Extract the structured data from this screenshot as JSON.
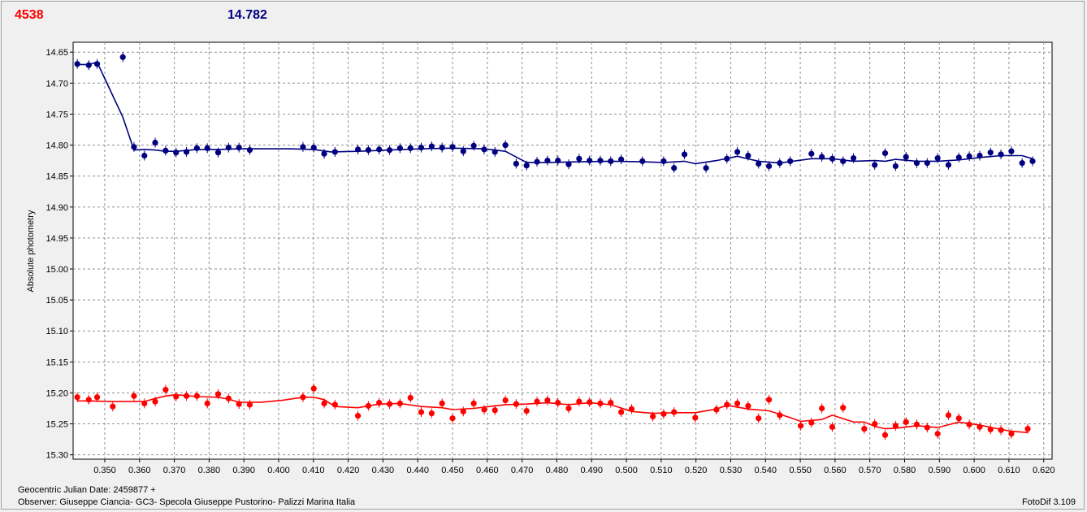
{
  "header": {
    "left_value": "4538",
    "right_value": "14.782"
  },
  "footer": {
    "jd_label": "Geocentric Julian Date: 2459877 +",
    "observer": "Observer: Giuseppe Ciancia- GC3- Specola Giuseppe Pustorino- Palizzi Marina Italia",
    "software": "FotoDif 3.109"
  },
  "chart_data": {
    "type": "scatter",
    "title": "",
    "xlabel": "",
    "ylabel": "Absolute photometry",
    "xlim": [
      0.3409,
      0.6224
    ],
    "ylim": [
      14.634,
      15.307
    ],
    "y_inverted": true,
    "grid": true,
    "x_ticks": [
      "0.350",
      "0.360",
      "0.370",
      "0.380",
      "0.390",
      "0.400",
      "0.410",
      "0.420",
      "0.430",
      "0.440",
      "0.450",
      "0.460",
      "0.470",
      "0.480",
      "0.490",
      "0.500",
      "0.510",
      "0.520",
      "0.530",
      "0.540",
      "0.550",
      "0.560",
      "0.570",
      "0.580",
      "0.590",
      "0.600",
      "0.610",
      "0.620"
    ],
    "y_ticks": [
      "14.65",
      "14.70",
      "14.75",
      "14.80",
      "14.85",
      "14.90",
      "14.95",
      "15.00",
      "15.05",
      "15.10",
      "15.15",
      "15.20",
      "15.25",
      "15.30"
    ],
    "series": [
      {
        "color": "#000080",
        "points": [
          [
            0.3421,
            14.669
          ],
          [
            0.3454,
            14.671
          ],
          [
            0.3478,
            14.669
          ],
          [
            0.3552,
            14.658
          ],
          [
            0.3584,
            14.803
          ],
          [
            0.3614,
            14.817
          ],
          [
            0.3645,
            14.796
          ],
          [
            0.3675,
            14.809
          ],
          [
            0.3705,
            14.812
          ],
          [
            0.3735,
            14.811
          ],
          [
            0.3765,
            14.805
          ],
          [
            0.3795,
            14.805
          ],
          [
            0.3826,
            14.812
          ],
          [
            0.3856,
            14.804
          ],
          [
            0.3886,
            14.804
          ],
          [
            0.3917,
            14.808
          ],
          [
            0.407,
            14.803
          ],
          [
            0.4101,
            14.804
          ],
          [
            0.4131,
            14.814
          ],
          [
            0.4162,
            14.811
          ],
          [
            0.4228,
            14.807
          ],
          [
            0.4258,
            14.808
          ],
          [
            0.4289,
            14.807
          ],
          [
            0.4319,
            14.808
          ],
          [
            0.4349,
            14.805
          ],
          [
            0.4379,
            14.805
          ],
          [
            0.441,
            14.804
          ],
          [
            0.444,
            14.802
          ],
          [
            0.447,
            14.804
          ],
          [
            0.45,
            14.803
          ],
          [
            0.4531,
            14.81
          ],
          [
            0.4561,
            14.801
          ],
          [
            0.4591,
            14.807
          ],
          [
            0.4622,
            14.811
          ],
          [
            0.4652,
            14.8
          ],
          [
            0.4683,
            14.83
          ],
          [
            0.4713,
            14.833
          ],
          [
            0.4743,
            14.827
          ],
          [
            0.4773,
            14.825
          ],
          [
            0.4803,
            14.825
          ],
          [
            0.4834,
            14.831
          ],
          [
            0.4864,
            14.822
          ],
          [
            0.4894,
            14.825
          ],
          [
            0.4925,
            14.825
          ],
          [
            0.4955,
            14.826
          ],
          [
            0.4985,
            14.823
          ],
          [
            0.5046,
            14.826
          ],
          [
            0.5107,
            14.826
          ],
          [
            0.5137,
            14.837
          ],
          [
            0.5167,
            14.815
          ],
          [
            0.5229,
            14.837
          ],
          [
            0.5289,
            14.822
          ],
          [
            0.5319,
            14.811
          ],
          [
            0.535,
            14.817
          ],
          [
            0.538,
            14.83
          ],
          [
            0.541,
            14.834
          ],
          [
            0.5441,
            14.829
          ],
          [
            0.5471,
            14.826
          ],
          [
            0.5532,
            14.814
          ],
          [
            0.5562,
            14.819
          ],
          [
            0.5592,
            14.822
          ],
          [
            0.5623,
            14.826
          ],
          [
            0.5653,
            14.821
          ],
          [
            0.5714,
            14.832
          ],
          [
            0.5744,
            14.813
          ],
          [
            0.5774,
            14.834
          ],
          [
            0.5804,
            14.819
          ],
          [
            0.5835,
            14.829
          ],
          [
            0.5865,
            14.829
          ],
          [
            0.5895,
            14.821
          ],
          [
            0.5926,
            14.832
          ],
          [
            0.5956,
            14.82
          ],
          [
            0.5986,
            14.818
          ],
          [
            0.6016,
            14.817
          ],
          [
            0.6047,
            14.812
          ],
          [
            0.6077,
            14.815
          ],
          [
            0.6107,
            14.81
          ],
          [
            0.6138,
            14.829
          ],
          [
            0.6168,
            14.826
          ]
        ],
        "line": [
          [
            0.3421,
            14.67
          ],
          [
            0.3454,
            14.67
          ],
          [
            0.3478,
            14.666
          ],
          [
            0.3552,
            14.755
          ],
          [
            0.3584,
            14.808
          ],
          [
            0.3614,
            14.807
          ],
          [
            0.3645,
            14.808
          ],
          [
            0.3675,
            14.81
          ],
          [
            0.3705,
            14.81
          ],
          [
            0.3765,
            14.807
          ],
          [
            0.3826,
            14.807
          ],
          [
            0.3886,
            14.806
          ],
          [
            0.395,
            14.806
          ],
          [
            0.403,
            14.806
          ],
          [
            0.4101,
            14.807
          ],
          [
            0.415,
            14.811
          ],
          [
            0.4228,
            14.81
          ],
          [
            0.4319,
            14.808
          ],
          [
            0.441,
            14.806
          ],
          [
            0.45,
            14.805
          ],
          [
            0.4591,
            14.806
          ],
          [
            0.4652,
            14.81
          ],
          [
            0.4713,
            14.828
          ],
          [
            0.4773,
            14.828
          ],
          [
            0.4864,
            14.827
          ],
          [
            0.4955,
            14.826
          ],
          [
            0.5046,
            14.827
          ],
          [
            0.5107,
            14.828
          ],
          [
            0.5167,
            14.826
          ],
          [
            0.5198,
            14.83
          ],
          [
            0.5259,
            14.825
          ],
          [
            0.5319,
            14.818
          ],
          [
            0.538,
            14.826
          ],
          [
            0.5441,
            14.829
          ],
          [
            0.5532,
            14.822
          ],
          [
            0.5592,
            14.822
          ],
          [
            0.5653,
            14.826
          ],
          [
            0.5714,
            14.825
          ],
          [
            0.5744,
            14.826
          ],
          [
            0.5774,
            14.823
          ],
          [
            0.5835,
            14.826
          ],
          [
            0.5895,
            14.826
          ],
          [
            0.5956,
            14.824
          ],
          [
            0.6016,
            14.82
          ],
          [
            0.6077,
            14.817
          ],
          [
            0.6138,
            14.817
          ],
          [
            0.6168,
            14.822
          ]
        ]
      },
      {
        "color": "#ff0000",
        "points": [
          [
            0.3421,
            15.207
          ],
          [
            0.3454,
            15.211
          ],
          [
            0.3478,
            15.207
          ],
          [
            0.3523,
            15.222
          ],
          [
            0.3584,
            15.205
          ],
          [
            0.3614,
            15.217
          ],
          [
            0.3645,
            15.214
          ],
          [
            0.3675,
            15.195
          ],
          [
            0.3705,
            15.206
          ],
          [
            0.3735,
            15.205
          ],
          [
            0.3765,
            15.205
          ],
          [
            0.3795,
            15.217
          ],
          [
            0.3826,
            15.202
          ],
          [
            0.3856,
            15.209
          ],
          [
            0.3886,
            15.218
          ],
          [
            0.3917,
            15.219
          ],
          [
            0.407,
            15.207
          ],
          [
            0.4101,
            15.193
          ],
          [
            0.4131,
            15.217
          ],
          [
            0.4162,
            15.219
          ],
          [
            0.4228,
            15.237
          ],
          [
            0.4258,
            15.221
          ],
          [
            0.4289,
            15.216
          ],
          [
            0.4319,
            15.218
          ],
          [
            0.4349,
            15.217
          ],
          [
            0.4379,
            15.208
          ],
          [
            0.441,
            15.231
          ],
          [
            0.444,
            15.233
          ],
          [
            0.447,
            15.217
          ],
          [
            0.45,
            15.241
          ],
          [
            0.4531,
            15.23
          ],
          [
            0.4561,
            15.217
          ],
          [
            0.4591,
            15.227
          ],
          [
            0.4622,
            15.228
          ],
          [
            0.4652,
            15.212
          ],
          [
            0.4683,
            15.218
          ],
          [
            0.4713,
            15.229
          ],
          [
            0.4743,
            15.214
          ],
          [
            0.4773,
            15.212
          ],
          [
            0.4803,
            15.216
          ],
          [
            0.4834,
            15.225
          ],
          [
            0.4864,
            15.214
          ],
          [
            0.4894,
            15.215
          ],
          [
            0.4925,
            15.217
          ],
          [
            0.4955,
            15.216
          ],
          [
            0.4985,
            15.231
          ],
          [
            0.5015,
            15.226
          ],
          [
            0.5076,
            15.238
          ],
          [
            0.5107,
            15.234
          ],
          [
            0.5137,
            15.231
          ],
          [
            0.5198,
            15.24
          ],
          [
            0.5259,
            15.227
          ],
          [
            0.5289,
            15.219
          ],
          [
            0.5319,
            15.217
          ],
          [
            0.535,
            15.221
          ],
          [
            0.538,
            15.241
          ],
          [
            0.541,
            15.211
          ],
          [
            0.5441,
            15.236
          ],
          [
            0.5501,
            15.253
          ],
          [
            0.5532,
            15.248
          ],
          [
            0.5562,
            15.225
          ],
          [
            0.5592,
            15.255
          ],
          [
            0.5623,
            15.224
          ],
          [
            0.5684,
            15.258
          ],
          [
            0.5714,
            15.25
          ],
          [
            0.5744,
            15.268
          ],
          [
            0.5774,
            15.253
          ],
          [
            0.5804,
            15.247
          ],
          [
            0.5835,
            15.251
          ],
          [
            0.5865,
            15.256
          ],
          [
            0.5895,
            15.266
          ],
          [
            0.5926,
            15.236
          ],
          [
            0.5956,
            15.241
          ],
          [
            0.5986,
            15.251
          ],
          [
            0.6016,
            15.255
          ],
          [
            0.6047,
            15.259
          ],
          [
            0.6077,
            15.26
          ],
          [
            0.6107,
            15.266
          ],
          [
            0.6154,
            15.258
          ]
        ],
        "line": [
          [
            0.3421,
            15.213
          ],
          [
            0.3454,
            15.213
          ],
          [
            0.3523,
            15.214
          ],
          [
            0.3584,
            15.214
          ],
          [
            0.3614,
            15.214
          ],
          [
            0.3645,
            15.209
          ],
          [
            0.3675,
            15.205
          ],
          [
            0.3705,
            15.203
          ],
          [
            0.3765,
            15.206
          ],
          [
            0.3826,
            15.207
          ],
          [
            0.3856,
            15.21
          ],
          [
            0.3886,
            15.215
          ],
          [
            0.395,
            15.215
          ],
          [
            0.401,
            15.212
          ],
          [
            0.407,
            15.207
          ],
          [
            0.4101,
            15.207
          ],
          [
            0.4131,
            15.211
          ],
          [
            0.4162,
            15.222
          ],
          [
            0.4228,
            15.224
          ],
          [
            0.4289,
            15.218
          ],
          [
            0.4349,
            15.217
          ],
          [
            0.441,
            15.222
          ],
          [
            0.447,
            15.224
          ],
          [
            0.45,
            15.227
          ],
          [
            0.4561,
            15.225
          ],
          [
            0.4622,
            15.221
          ],
          [
            0.4652,
            15.219
          ],
          [
            0.4713,
            15.218
          ],
          [
            0.4773,
            15.216
          ],
          [
            0.4834,
            15.219
          ],
          [
            0.4894,
            15.216
          ],
          [
            0.4955,
            15.219
          ],
          [
            0.5015,
            15.23
          ],
          [
            0.5076,
            15.233
          ],
          [
            0.5137,
            15.232
          ],
          [
            0.5198,
            15.232
          ],
          [
            0.5259,
            15.226
          ],
          [
            0.5289,
            15.22
          ],
          [
            0.535,
            15.226
          ],
          [
            0.541,
            15.229
          ],
          [
            0.5471,
            15.24
          ],
          [
            0.5501,
            15.246
          ],
          [
            0.5562,
            15.243
          ],
          [
            0.5592,
            15.236
          ],
          [
            0.5653,
            15.247
          ],
          [
            0.5684,
            15.247
          ],
          [
            0.5714,
            15.254
          ],
          [
            0.5744,
            15.258
          ],
          [
            0.5774,
            15.257
          ],
          [
            0.5835,
            15.253
          ],
          [
            0.5895,
            15.256
          ],
          [
            0.5956,
            15.247
          ],
          [
            0.6016,
            15.252
          ],
          [
            0.6077,
            15.259
          ],
          [
            0.6107,
            15.262
          ],
          [
            0.6154,
            15.264
          ]
        ]
      }
    ]
  }
}
